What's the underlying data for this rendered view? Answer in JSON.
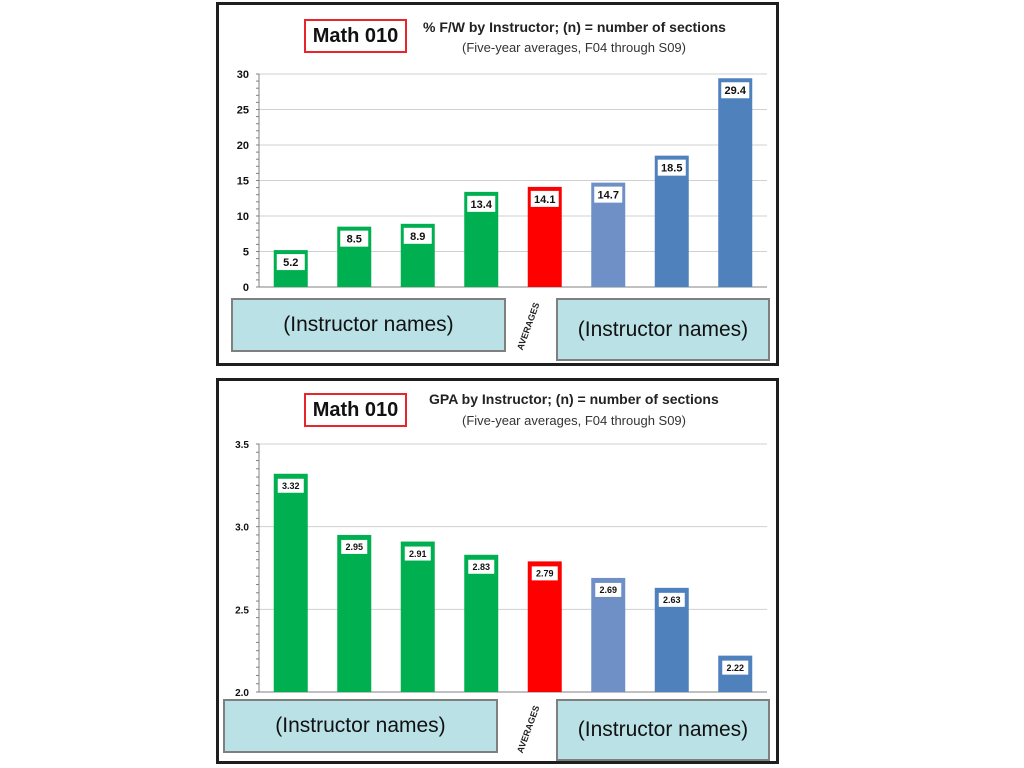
{
  "colors": {
    "green": "#00b050",
    "red": "#ff0000",
    "light_blue": "#6f8fc7",
    "blue": "#4f81bd",
    "highlight_red": "#e8242c",
    "names_box_bg": "#b9e1e6"
  },
  "chart_data": [
    {
      "type": "bar",
      "badge": "Math 010",
      "title": "% F/W by Instructor; (n) = number of sections",
      "subtitle": "(Five-year averages, F04 through S09)",
      "categories": [
        "",
        "",
        "",
        "",
        "AVERAGES",
        "",
        "",
        ""
      ],
      "values": [
        5.2,
        8.5,
        8.9,
        13.4,
        14.1,
        14.7,
        18.5,
        29.4
      ],
      "value_labels": [
        "5.2",
        "8.5",
        "8.9",
        "13.4",
        "14.1",
        "14.7",
        "18.5",
        "29.4"
      ],
      "bar_colors": [
        "#00b050",
        "#00b050",
        "#00b050",
        "#00b050",
        "#ff0000",
        "#6f8fc7",
        "#4f81bd",
        "#4f81bd"
      ],
      "ylim": [
        0,
        30
      ],
      "yticks": [
        "0",
        "5",
        "10",
        "15",
        "20",
        "25",
        "30"
      ],
      "ytick_values": [
        0,
        5,
        10,
        15,
        20,
        25,
        30
      ],
      "grid": true,
      "xlabel": "",
      "ylabel": "",
      "left_names": "(Instructor names)",
      "right_names": "(Instructor names)",
      "averages_label": "AVERAGES"
    },
    {
      "type": "bar",
      "badge": "Math 010",
      "title": "GPA by Instructor; (n) = number of sections",
      "subtitle": "(Five-year averages, F04 through S09)",
      "categories": [
        "",
        "",
        "",
        "",
        "AVERAGES",
        "",
        "",
        ""
      ],
      "values": [
        3.32,
        2.95,
        2.91,
        2.83,
        2.79,
        2.69,
        2.63,
        2.22
      ],
      "value_labels": [
        "3.32",
        "2.95",
        "2.91",
        "2.83",
        "2.79",
        "2.69",
        "2.63",
        "2.22"
      ],
      "bar_colors": [
        "#00b050",
        "#00b050",
        "#00b050",
        "#00b050",
        "#ff0000",
        "#6f8fc7",
        "#4f81bd",
        "#4f81bd"
      ],
      "ylim": [
        2.0,
        3.5
      ],
      "yticks": [
        "2.0",
        "2.5",
        "3.0",
        "3.5"
      ],
      "ytick_values": [
        2.0,
        2.5,
        3.0,
        3.5
      ],
      "grid": true,
      "xlabel": "",
      "ylabel": "",
      "left_names": "(Instructor names)",
      "right_names": "(Instructor names)",
      "averages_label": "AVERAGES"
    }
  ]
}
